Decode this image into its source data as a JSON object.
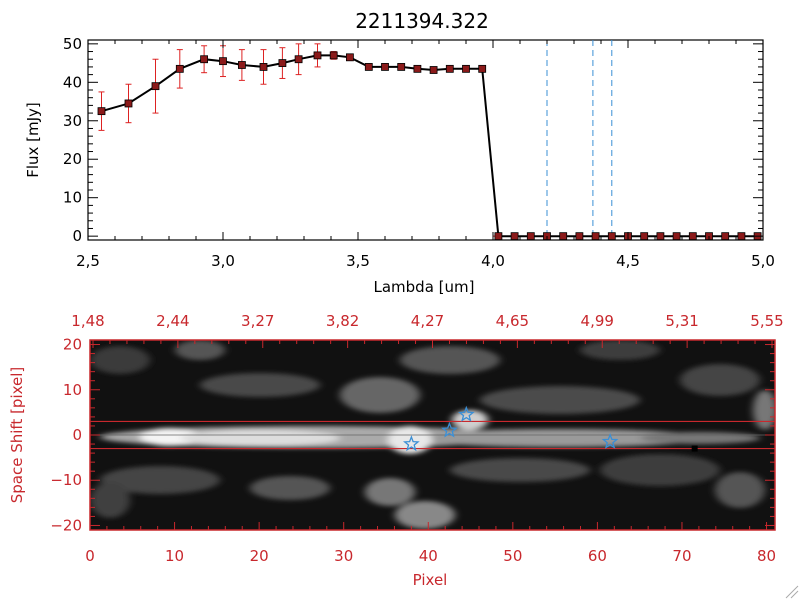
{
  "chart_data": [
    {
      "type": "line",
      "title": "2211394.322",
      "xlabel": "Lambda [um]",
      "ylabel": "Flux [mJy]",
      "xlim": [
        2.5,
        5.0
      ],
      "ylim": [
        -1,
        51
      ],
      "xticks": [
        "2.5",
        "3.0",
        "3.5",
        "4.0",
        "4.5",
        "5.0"
      ],
      "yticks": [
        "0",
        "10",
        "20",
        "30",
        "40",
        "50"
      ],
      "series": [
        {
          "color": "#000000",
          "marker_color": "#8b1a1a",
          "errorbar_color": "#dd2222",
          "x": [
            2.55,
            2.65,
            2.75,
            2.84,
            2.93,
            3.0,
            3.07,
            3.15,
            3.22,
            3.28,
            3.35,
            3.41,
            3.47,
            3.54,
            3.6,
            3.66,
            3.72,
            3.78,
            3.84,
            3.9,
            3.96,
            4.02,
            4.08,
            4.14,
            4.2,
            4.26,
            4.32,
            4.38,
            4.44,
            4.5,
            4.56,
            4.62,
            4.68,
            4.74,
            4.8,
            4.86,
            4.92,
            4.98
          ],
          "y": [
            32.5,
            34.5,
            39.0,
            43.5,
            46.0,
            45.5,
            44.5,
            44.0,
            45.0,
            46.0,
            47.0,
            47.0,
            46.5,
            44.0,
            44.0,
            44.0,
            43.5,
            43.2,
            43.5,
            43.5,
            43.5,
            0,
            0,
            0,
            0,
            0,
            0,
            0,
            0,
            0,
            0,
            0,
            0,
            0,
            0,
            0,
            0,
            0
          ],
          "yerr": [
            5,
            5,
            7,
            5,
            3.5,
            4,
            4,
            4.5,
            4,
            4,
            3,
            1,
            0.5,
            0.5,
            0,
            0,
            0,
            0,
            0,
            0,
            0,
            0,
            0,
            0,
            0,
            0,
            0,
            0,
            0,
            0,
            0,
            0,
            0,
            0,
            0,
            0,
            0,
            0
          ]
        }
      ],
      "vlines": [
        4.2,
        4.37,
        4.44
      ],
      "vline_color": "#3a8fd6",
      "hline_y": 0,
      "hline_color": "#dd2222"
    },
    {
      "type": "heatmap",
      "xlabel": "Pixel",
      "ylabel": "Space Shift [pixel]",
      "xlim": [
        0,
        81
      ],
      "ylim": [
        -21,
        21
      ],
      "xticks": [
        "0",
        "10",
        "20",
        "30",
        "40",
        "50",
        "60",
        "70",
        "80"
      ],
      "yticks": [
        "-20",
        "-10",
        "0",
        "10",
        "20"
      ],
      "top_ticks": [
        "1.48",
        "2.44",
        "3.27",
        "3.82",
        "4.27",
        "4.65",
        "4.99",
        "5.31",
        "5.55"
      ],
      "aperture_lines_y": [
        3,
        -3
      ],
      "center_line_y": 0,
      "stars": [
        {
          "x": 38,
          "y": -2
        },
        {
          "x": 42.5,
          "y": 1
        },
        {
          "x": 44.5,
          "y": 4.5
        },
        {
          "x": 61.5,
          "y": -1.5
        }
      ],
      "star_color": "#3a8fd6",
      "dark_marker": {
        "x": 71.5,
        "y": -3
      },
      "accent_color": "#c8282d"
    }
  ]
}
